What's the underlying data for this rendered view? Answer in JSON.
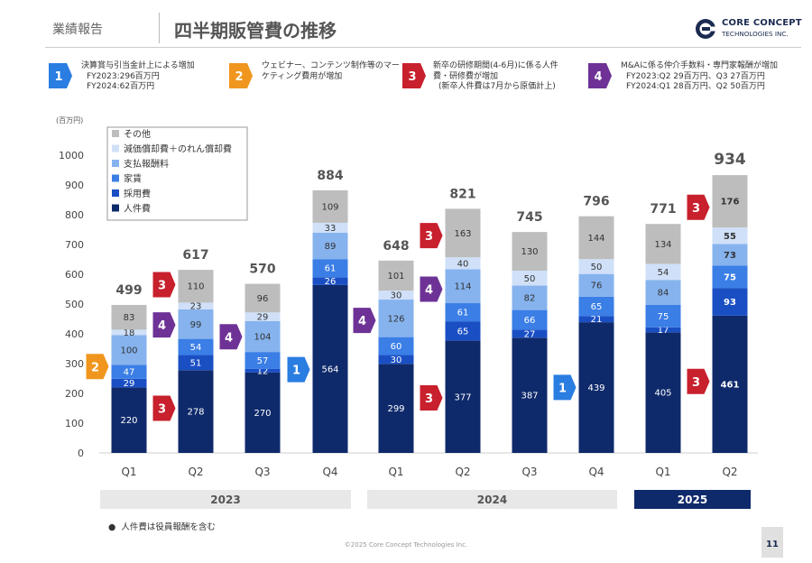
{
  "header": {
    "section": "業績報告",
    "title": "四半期販管費の推移",
    "logo_line1": "CORE CONCEPT",
    "logo_line2": "TECHNOLOGIES INC.",
    "logo_color": "#1a2a50"
  },
  "notes": [
    {
      "num": "1",
      "color": "#2a7de1",
      "lines": [
        "決算賞与引当金計上による増加",
        "FY2023:296百万円",
        "FY2024:62百万円"
      ]
    },
    {
      "num": "2",
      "color": "#f0961e",
      "lines": [
        "ウェビナー、コンテンツ制作等のマー",
        "ケティング費用が増加"
      ]
    },
    {
      "num": "3",
      "color": "#c8202d",
      "lines": [
        "新卒の研修期間(4-6月)に係る人件",
        "費・研修費が増加",
        "(新卒人件費は7月から原価計上)"
      ]
    },
    {
      "num": "4",
      "color": "#6e3296",
      "lines": [
        "M&Aに係る仲介手数料・専門家報酬が増加",
        "FY2023:Q2 29百万円、Q3 27百万円",
        "FY2024:Q1 28百万円、Q2 50百万円"
      ]
    }
  ],
  "chart_data": {
    "type": "bar",
    "stacked": true,
    "unit_label": "(百万円)",
    "ylim": [
      0,
      1000
    ],
    "yticks": [
      0,
      100,
      200,
      300,
      400,
      500,
      600,
      700,
      800,
      900,
      1000
    ],
    "categories": [
      "Q1",
      "Q2",
      "Q3",
      "Q4",
      "Q1",
      "Q2",
      "Q3",
      "Q4",
      "Q1",
      "Q2"
    ],
    "years": [
      {
        "label": "2023",
        "start": 0,
        "end": 3,
        "highlight": false
      },
      {
        "label": "2024",
        "start": 4,
        "end": 7,
        "highlight": false
      },
      {
        "label": "2025",
        "start": 8,
        "end": 9,
        "highlight": true
      }
    ],
    "series": [
      {
        "name": "人件費",
        "color": "#0f2a6b",
        "values": [
          220,
          278,
          270,
          564,
          299,
          377,
          387,
          439,
          405,
          461
        ]
      },
      {
        "name": "採用費",
        "color": "#1a4fc4",
        "values": [
          29,
          51,
          12,
          26,
          30,
          65,
          27,
          21,
          17,
          93
        ]
      },
      {
        "name": "家賃",
        "color": "#3a7ee6",
        "values": [
          47,
          54,
          57,
          61,
          60,
          61,
          66,
          65,
          75,
          75
        ]
      },
      {
        "name": "支払報酬料",
        "color": "#86b3ee",
        "values": [
          100,
          99,
          104,
          89,
          126,
          114,
          82,
          76,
          84,
          73
        ]
      },
      {
        "name": "減価償却費＋のれん償却費",
        "color": "#cfe0f8",
        "values": [
          18,
          23,
          29,
          33,
          30,
          40,
          50,
          50,
          54,
          55
        ]
      },
      {
        "name": "その他",
        "color": "#bdbdbd",
        "values": [
          83,
          110,
          96,
          109,
          101,
          163,
          130,
          144,
          134,
          176
        ]
      }
    ],
    "totals": [
      499,
      617,
      570,
      884,
      648,
      821,
      745,
      796,
      771,
      934
    ],
    "callouts": [
      {
        "num": "2",
        "color": "#f0961e",
        "bar": 0,
        "value": 290
      },
      {
        "num": "3",
        "color": "#c8202d",
        "bar": 1,
        "value": 565
      },
      {
        "num": "4",
        "color": "#6e3296",
        "bar": 1,
        "value": 430
      },
      {
        "num": "3",
        "color": "#c8202d",
        "bar": 1,
        "value": 150
      },
      {
        "num": "4",
        "color": "#6e3296",
        "bar": 2,
        "value": 390
      },
      {
        "num": "1",
        "color": "#2a7de1",
        "bar": 3,
        "value": 280
      },
      {
        "num": "4",
        "color": "#6e3296",
        "bar": 4,
        "value": 445
      },
      {
        "num": "3",
        "color": "#c8202d",
        "bar": 5,
        "value": 730
      },
      {
        "num": "4",
        "color": "#6e3296",
        "bar": 5,
        "value": 550
      },
      {
        "num": "3",
        "color": "#c8202d",
        "bar": 5,
        "value": 185
      },
      {
        "num": "1",
        "color": "#2a7de1",
        "bar": 7,
        "value": 220
      },
      {
        "num": "3",
        "color": "#c8202d",
        "bar": 9,
        "value": 825
      },
      {
        "num": "3",
        "color": "#c8202d",
        "bar": 9,
        "value": 240
      }
    ]
  },
  "footnote": "人件費は役員報酬を含む",
  "copyright": "©2025 Core Concept Technologies Inc.",
  "page_number": "11"
}
